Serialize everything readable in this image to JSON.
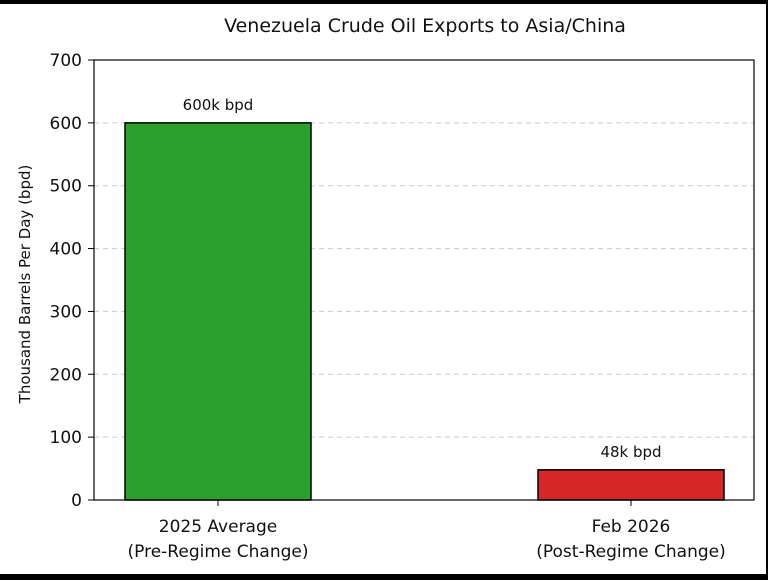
{
  "chart_data": {
    "type": "bar",
    "title": "Venezuela Crude Oil Exports to Asia/China",
    "xlabel": "",
    "ylabel": "Thousand Barrels Per Day (bpd)",
    "ylim": [
      0,
      700
    ],
    "yticks": [
      0,
      100,
      200,
      300,
      400,
      500,
      600,
      700
    ],
    "ytick_labels": [
      "0",
      "100",
      "200",
      "300",
      "400",
      "500",
      "600",
      "700"
    ],
    "grid": "y-dashed",
    "categories": [
      [
        "2025 Average",
        "(Pre-Regime Change)"
      ],
      [
        "Feb 2026",
        "(Post-Regime Change)"
      ]
    ],
    "values": [
      600,
      48
    ],
    "data_labels": [
      "600k bpd",
      "48k bpd"
    ],
    "colors": [
      "#2ca02c",
      "#d62728"
    ]
  }
}
